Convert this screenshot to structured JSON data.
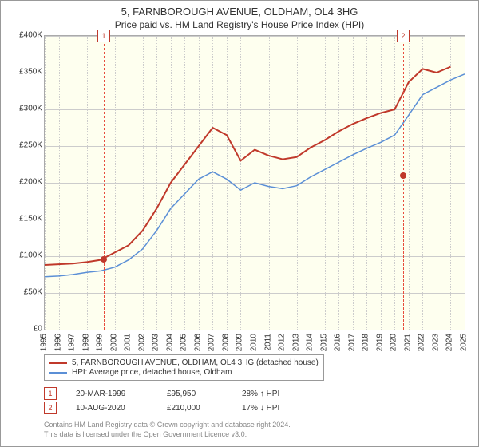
{
  "title": "5, FARNBOROUGH AVENUE, OLDHAM, OL4 3HG",
  "subtitle": "Price paid vs. HM Land Registry's House Price Index (HPI)",
  "chart": {
    "type": "line",
    "background_color": "#feffef",
    "grid_color": "#cccccc",
    "border_color": "#aaaaaa",
    "text_color": "#333333",
    "ylim": [
      0,
      400000
    ],
    "ytick_step": 50000,
    "y_ticks": [
      "£0",
      "£50K",
      "£100K",
      "£150K",
      "£200K",
      "£250K",
      "£300K",
      "£350K",
      "£400K"
    ],
    "x_years": [
      1995,
      1996,
      1997,
      1998,
      1999,
      2000,
      2001,
      2002,
      2003,
      2004,
      2005,
      2006,
      2007,
      2008,
      2009,
      2010,
      2011,
      2012,
      2013,
      2014,
      2015,
      2016,
      2017,
      2018,
      2019,
      2020,
      2021,
      2022,
      2023,
      2024,
      2025
    ],
    "series": {
      "property": {
        "label": "5, FARNBOROUGH AVENUE, OLDHAM, OL4 3HG (detached house)",
        "color": "#c0392b",
        "line_width": 2,
        "values_by_year": {
          "1995": 88000,
          "1996": 89000,
          "1997": 90000,
          "1998": 92000,
          "1999": 95000,
          "2000": 105000,
          "2001": 115000,
          "2002": 135000,
          "2003": 165000,
          "2004": 200000,
          "2005": 225000,
          "2006": 250000,
          "2007": 275000,
          "2008": 265000,
          "2009": 230000,
          "2010": 245000,
          "2011": 237000,
          "2012": 232000,
          "2013": 235000,
          "2014": 248000,
          "2015": 258000,
          "2016": 270000,
          "2017": 280000,
          "2018": 288000,
          "2019": 295000,
          "2020": 300000,
          "2021": 337000,
          "2022": 355000,
          "2023": 350000,
          "2024": 358000
        }
      },
      "hpi": {
        "label": "HPI: Average price, detached house, Oldham",
        "color": "#5b8fd6",
        "line_width": 1.5,
        "values_by_year": {
          "1995": 72000,
          "1996": 73000,
          "1997": 75000,
          "1998": 78000,
          "1999": 80000,
          "2000": 85000,
          "2001": 95000,
          "2002": 110000,
          "2003": 135000,
          "2004": 165000,
          "2005": 185000,
          "2006": 205000,
          "2007": 215000,
          "2008": 205000,
          "2009": 190000,
          "2010": 200000,
          "2011": 195000,
          "2012": 192000,
          "2013": 196000,
          "2014": 208000,
          "2015": 218000,
          "2016": 228000,
          "2017": 238000,
          "2018": 247000,
          "2019": 255000,
          "2020": 265000,
          "2021": 292000,
          "2022": 320000,
          "2023": 330000,
          "2024": 340000,
          "2025": 348000
        }
      }
    },
    "sale_events": [
      {
        "n": "1",
        "year_frac": 1999.22,
        "price": 95950
      },
      {
        "n": "2",
        "year_frac": 2020.61,
        "price": 210000
      }
    ],
    "marker_border_color": "#c0392b",
    "dash_color": "#e74c3c"
  },
  "legend": {
    "line1": "5, FARNBOROUGH AVENUE, OLDHAM, OL4 3HG (detached house)",
    "line2": "HPI: Average price, detached house, Oldham"
  },
  "sales_table": [
    {
      "n": "1",
      "date": "20-MAR-1999",
      "price": "£95,950",
      "delta": "28% ↑ HPI"
    },
    {
      "n": "2",
      "date": "10-AUG-2020",
      "price": "£210,000",
      "delta": "17% ↓ HPI"
    }
  ],
  "footer": {
    "line1": "Contains HM Land Registry data © Crown copyright and database right 2024.",
    "line2": "This data is licensed under the Open Government Licence v3.0."
  }
}
